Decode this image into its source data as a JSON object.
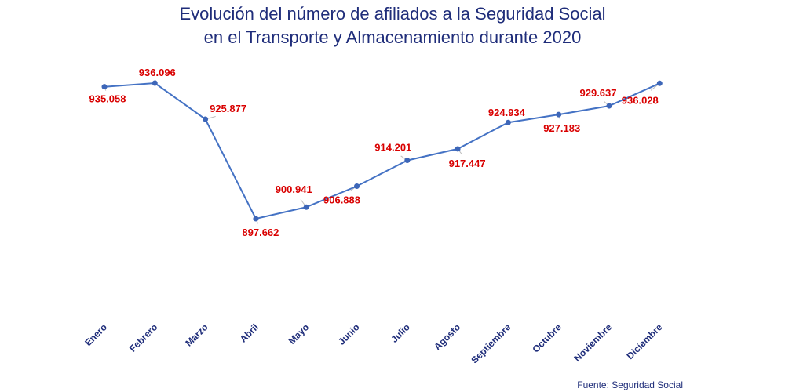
{
  "title_line1": "Evolución del número de afiliados a la Seguridad Social",
  "title_line2": "en el Transporte y Almacenamiento durante 2020",
  "source": "Fuente: Seguridad Social",
  "colors": {
    "line": "#4472c4",
    "point": "#3d66b8",
    "label": "#d90000",
    "title": "#1f2d7a",
    "axis_label": "#1f2d7a",
    "leader": "#bdbdbd"
  },
  "chart_data": {
    "type": "line",
    "title": "Evolución del número de afiliados a la Seguridad Social en el Transporte y Almacenamiento durante 2020",
    "xlabel": "",
    "ylabel": "",
    "grid": false,
    "legend": "none",
    "categories": [
      "Enero",
      "Febrero",
      "Marzo",
      "Abril",
      "Mayo",
      "Junio",
      "Julio",
      "Agosto",
      "Septiembre",
      "Octubre",
      "Noviembre",
      "Diciembre"
    ],
    "values": [
      935058,
      936096,
      925877,
      897662,
      900941,
      906888,
      914201,
      917447,
      924934,
      927183,
      929637,
      936028
    ],
    "value_labels": [
      "935.058",
      "936.096",
      "925.877",
      "897.662",
      "900.941",
      "906.888",
      "914.201",
      "917.447",
      "924.934",
      "927.183",
      "929.637",
      "936.028"
    ]
  }
}
